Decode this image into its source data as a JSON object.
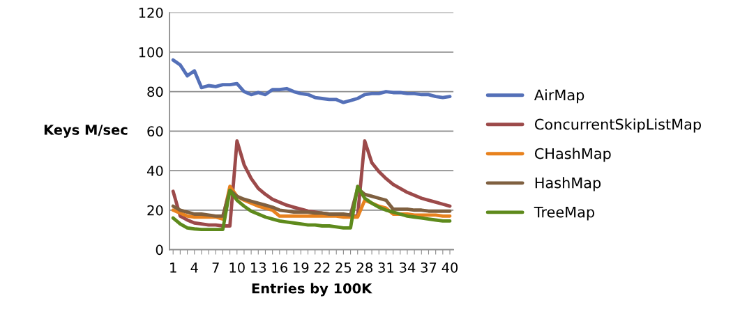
{
  "chart_data": {
    "type": "line",
    "xlabel": "Entries by 100K",
    "ylabel": "Keys M/sec",
    "categories": [
      "1",
      null,
      null,
      "4",
      null,
      null,
      "7",
      null,
      null,
      "10",
      null,
      null,
      "13",
      null,
      null,
      "16",
      null,
      null,
      "19",
      null,
      null,
      "22",
      null,
      null,
      "25",
      null,
      null,
      "28",
      null,
      null,
      "31",
      null,
      null,
      "34",
      null,
      null,
      "37",
      null,
      null,
      "40"
    ],
    "ylim": [
      0,
      120
    ],
    "yticks": [
      0,
      20,
      40,
      60,
      80,
      100,
      120
    ],
    "grid": "y",
    "legend": "right",
    "marker": "none",
    "line_style": "solid",
    "series": [
      {
        "name": "AirMap",
        "color": "#5470b8",
        "values": [
          96,
          93.5,
          88,
          90.5,
          82,
          83,
          82.5,
          83.5,
          83.5,
          84,
          80,
          78.5,
          79.5,
          78.5,
          81,
          81,
          81.5,
          80,
          79,
          78.5,
          77,
          76.5,
          76,
          76,
          74.5,
          75.5,
          76.5,
          78.5,
          79,
          79,
          80,
          79.5,
          79.5,
          79,
          79,
          78.5,
          78.5,
          77.5,
          77,
          77.5
        ]
      },
      {
        "name": "ConcurrentSkipListMap",
        "color": "#9c4a4a",
        "values": [
          29.5,
          17,
          15,
          13.5,
          13,
          12.5,
          12.5,
          12,
          12,
          55,
          43,
          36,
          31,
          28,
          25.5,
          24,
          22.5,
          21.5,
          20.5,
          19.5,
          19,
          18.5,
          18,
          17.5,
          17,
          17,
          17,
          55,
          44,
          39.5,
          36,
          33,
          31,
          29,
          27.5,
          26,
          25,
          24,
          23,
          22
        ]
      },
      {
        "name": "CHashMap",
        "color": "#e8821e",
        "values": [
          20,
          18.5,
          17,
          16.5,
          16.5,
          16.5,
          16.5,
          15.5,
          32,
          27,
          25,
          23.5,
          22,
          21,
          20,
          17,
          17,
          17,
          17,
          17,
          17,
          17,
          17,
          17,
          16.5,
          16.5,
          16.5,
          25,
          23.5,
          22,
          21,
          18,
          18,
          18,
          17.5,
          17.5,
          17.5,
          17.5,
          17,
          17
        ]
      },
      {
        "name": "HashMap",
        "color": "#7f6040",
        "values": [
          22,
          20,
          19,
          18,
          18,
          17.5,
          17,
          17,
          30,
          27,
          25.5,
          24.5,
          23.5,
          22.5,
          21.5,
          20,
          19.5,
          19,
          19,
          19,
          18.5,
          18.5,
          18,
          18,
          18,
          17.5,
          31,
          28,
          27,
          26,
          25,
          20.5,
          20.5,
          20.5,
          20,
          20,
          19.5,
          19.5,
          19.5,
          19.5
        ]
      },
      {
        "name": "TreeMap",
        "color": "#5e8a1c",
        "values": [
          16,
          13,
          11,
          10.5,
          10.2,
          10.2,
          10.2,
          10.2,
          30,
          25,
          22,
          19.5,
          18,
          16.5,
          15.5,
          14.5,
          14,
          13.5,
          13,
          12.5,
          12.5,
          12,
          12,
          11.5,
          11,
          11,
          32,
          26,
          23.5,
          21.5,
          20,
          19,
          18,
          17,
          16.5,
          16,
          15.5,
          15,
          14.5,
          14.5
        ]
      }
    ]
  }
}
